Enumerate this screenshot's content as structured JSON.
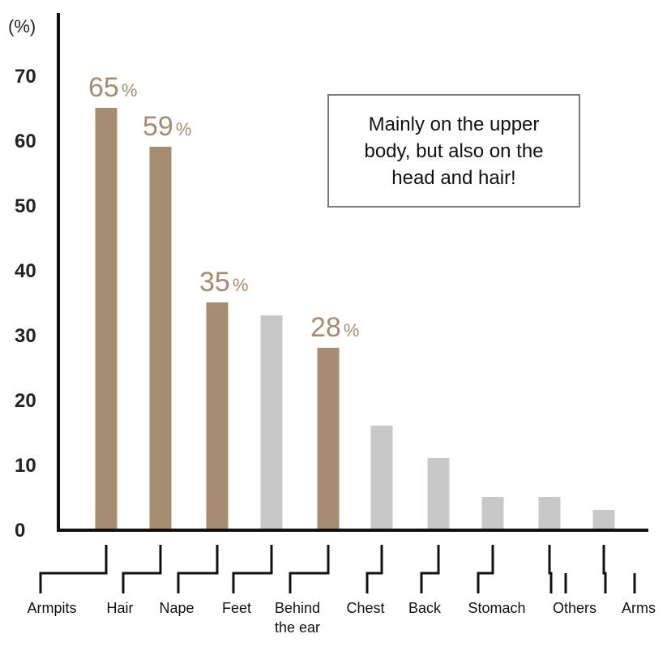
{
  "chart_data": {
    "type": "bar",
    "ylabel": "(%)",
    "ylim": [
      0,
      78
    ],
    "yticks": [
      "0",
      "10",
      "20",
      "30",
      "40",
      "50",
      "60",
      "70"
    ],
    "categories": [
      "Armpits",
      "Hair",
      "Nape",
      "Feet",
      "Behind the ear",
      "Chest",
      "Back",
      "Stomach",
      "Others",
      "Arms"
    ],
    "category_lines": [
      [
        "Armpits"
      ],
      [
        "Hair"
      ],
      [
        "Nape"
      ],
      [
        "Feet"
      ],
      [
        "Behind",
        "the ear"
      ],
      [
        "Chest"
      ],
      [
        "Back"
      ],
      [
        "Stomach"
      ],
      [
        "Others"
      ],
      [
        "Arms"
      ]
    ],
    "values": [
      65,
      59,
      35,
      33,
      28,
      16,
      11,
      5,
      5,
      3
    ],
    "highlighted": [
      true,
      true,
      true,
      false,
      true,
      false,
      false,
      false,
      false,
      false
    ],
    "data_labels": [
      {
        "index": 0,
        "number": "65",
        "unit": "%"
      },
      {
        "index": 1,
        "number": "59",
        "unit": "%"
      },
      {
        "index": 2,
        "number": "35",
        "unit": "%"
      },
      {
        "index": 4,
        "number": "28",
        "unit": "%"
      }
    ],
    "colors": {
      "highlight": "#a68c70",
      "other": "#c8c8c8",
      "axis": "#111111"
    },
    "grid": false
  },
  "callout": {
    "lines": [
      "Mainly on the upper",
      "body, but also on the",
      "head and hair!"
    ]
  }
}
